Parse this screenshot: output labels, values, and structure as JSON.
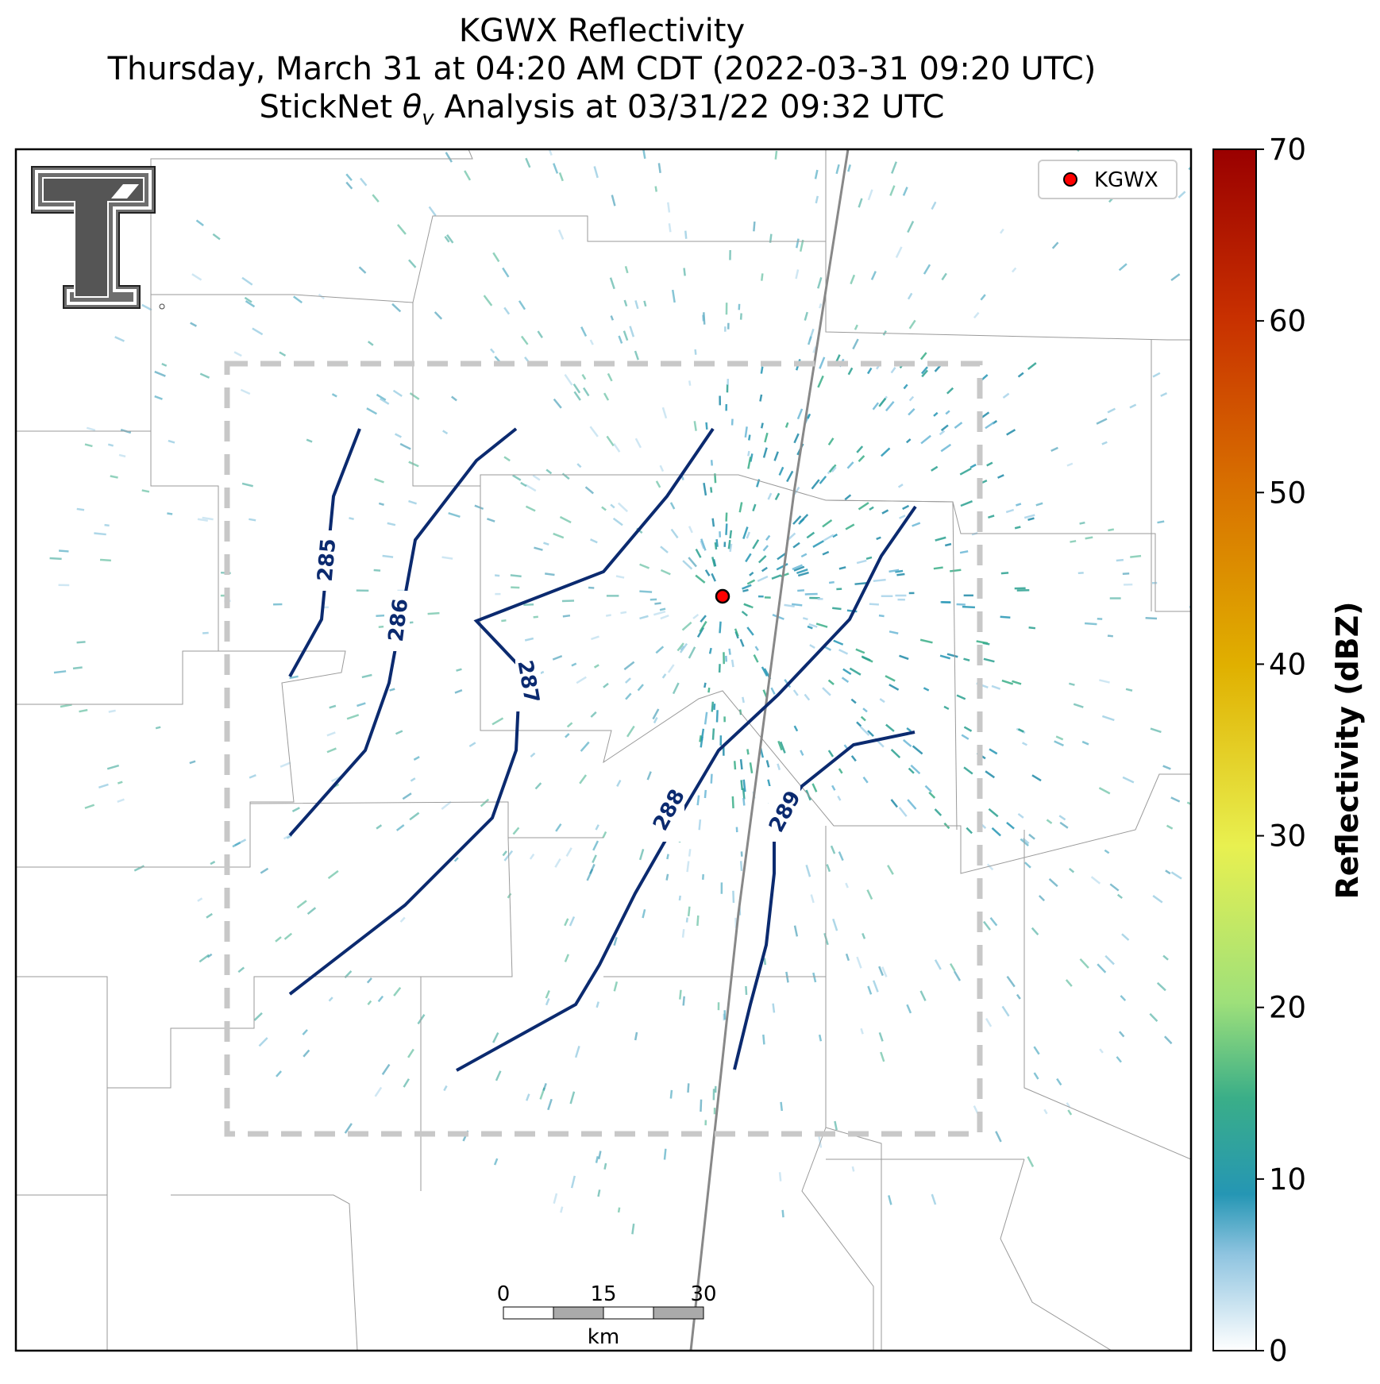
{
  "title": {
    "line1": "KGWX Reflectivity",
    "line2": "Thursday, March 31 at 04:20 AM CDT (2022-03-31 09:20 UTC)",
    "line3_prefix": "StickNet ",
    "line3_theta": "θ",
    "line3_sub": "v",
    "line3_suffix": " Analysis at 03/31/22 09:32 UTC"
  },
  "legend": {
    "station": "KGWX",
    "marker_color": "#ff0000"
  },
  "colorbar": {
    "label": "Reflectivity (dBZ)",
    "ticks": [
      "0",
      "10",
      "20",
      "30",
      "40",
      "50",
      "60",
      "70"
    ],
    "min": 0,
    "max": 70
  },
  "contours": [
    {
      "label": "285"
    },
    {
      "label": "286"
    },
    {
      "label": "287"
    },
    {
      "label": "288"
    },
    {
      "label": "289"
    }
  ],
  "scalebar": {
    "ticks": [
      "0",
      "15",
      "30"
    ],
    "unit": "km"
  },
  "colors": {
    "contour": "#0b2a6f",
    "domain_box": "#c8c8c8",
    "county": "#9a9a9a",
    "highway": "#888888"
  }
}
